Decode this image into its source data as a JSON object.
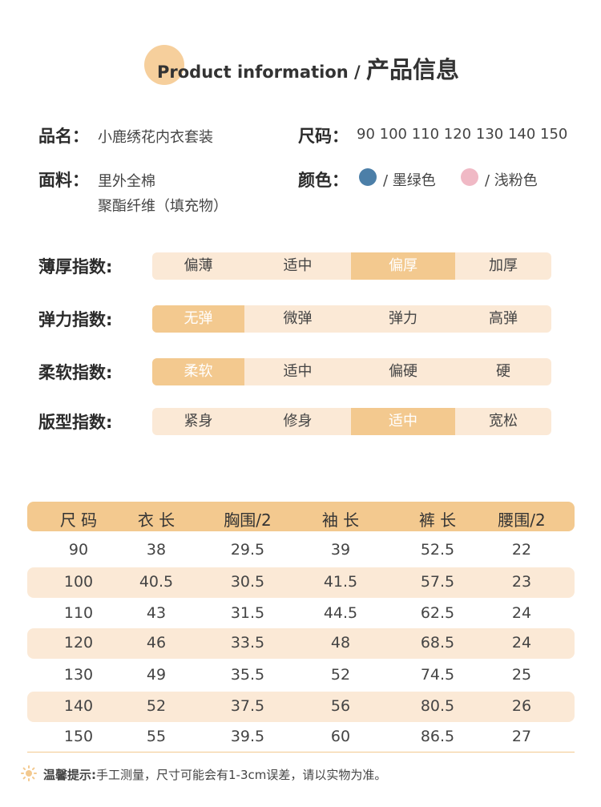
{
  "header": {
    "title_en": "Product information /",
    "title_cn": "产品信息"
  },
  "info": {
    "name": {
      "label": "品名：",
      "value": "小鹿绣花内衣套装"
    },
    "size": {
      "label": "尺码：",
      "value": "90 100 110 120 130 140 150"
    },
    "fabric": {
      "label": "面料：",
      "values": [
        "里外全棉",
        "聚酯纤维（填充物）"
      ]
    },
    "color": {
      "label": "颜色：",
      "values": [
        "/ 墨绿色",
        "/ 浅粉色"
      ]
    }
  },
  "indices": [
    {
      "label": "薄厚指数:",
      "options": [
        "偏薄",
        "适中",
        "偏厚",
        "加厚"
      ],
      "selected": 2
    },
    {
      "label": "弹力指数:",
      "options": [
        "无弹",
        "微弹",
        "弹力",
        "高弹"
      ],
      "selected": 0
    },
    {
      "label": "柔软指数:",
      "options": [
        "柔软",
        "适中",
        "偏硬",
        "硬"
      ],
      "selected": 0
    },
    {
      "label": "版型指数:",
      "options": [
        "紧身",
        "修身",
        "适中",
        "宽松"
      ],
      "selected": 2
    }
  ],
  "table": {
    "header": [
      "尺 码",
      "衣 长",
      "胸围/2",
      "袖 长",
      "裤 长",
      "腰围/2"
    ],
    "rows": [
      [
        "90",
        "38",
        "29.5",
        "39",
        "52.5",
        "22"
      ],
      [
        "100",
        "40.5",
        "30.5",
        "41.5",
        "57.5",
        "23"
      ],
      [
        "110",
        "43",
        "31.5",
        "44.5",
        "62.5",
        "24"
      ],
      [
        "120",
        "46",
        "33.5",
        "48",
        "68.5",
        "24"
      ],
      [
        "130",
        "49",
        "35.5",
        "52",
        "74.5",
        "25"
      ],
      [
        "140",
        "52",
        "37.5",
        "56",
        "80.5",
        "26"
      ],
      [
        "150",
        "55",
        "39.5",
        "60",
        "86.5",
        "27"
      ]
    ]
  },
  "footer": {
    "label": "温馨提示:",
    "text": "手工测量，尺寸可能会有1-3cm误差，请以实物为准。"
  }
}
